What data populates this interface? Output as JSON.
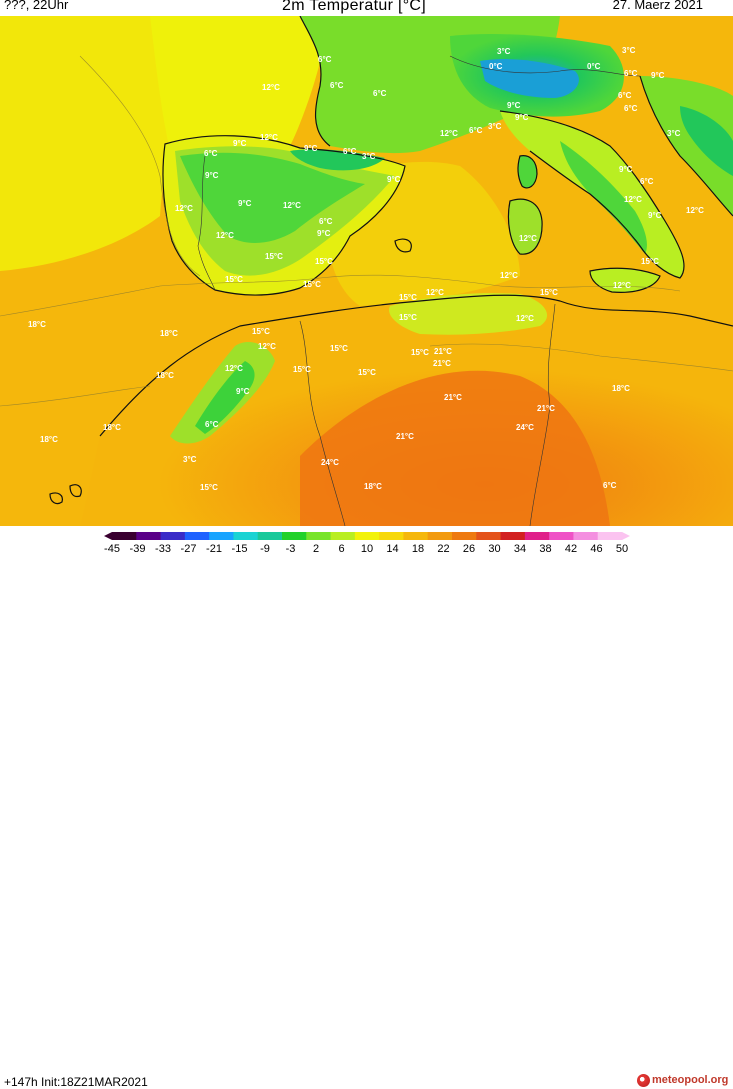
{
  "header": {
    "run_label": "???, 22Uhr",
    "title": "2m Temperatur [°C]",
    "date": "27. Maerz 2021"
  },
  "footer": {
    "init_label": "+147h  Init:18Z21MAR2021",
    "brand": "meteopool.org"
  },
  "colorbar": {
    "ticks": [
      "-45",
      "-39",
      "-33",
      "-27",
      "-21",
      "-15",
      "-9",
      "-3",
      "2",
      "6",
      "10",
      "14",
      "18",
      "22",
      "26",
      "30",
      "34",
      "38",
      "42",
      "46",
      "50"
    ],
    "colors": [
      "#3a0030",
      "#5a0088",
      "#3a2cc8",
      "#1f62ff",
      "#18a4ff",
      "#1ad3d3",
      "#19c99a",
      "#22d12a",
      "#78e42a",
      "#b9ee22",
      "#f2f20a",
      "#f7d80a",
      "#f5b70c",
      "#f29a0f",
      "#ee7a10",
      "#e4531b",
      "#d22121",
      "#e0208a",
      "#ef52c6",
      "#f48fe0",
      "#fbc3f0"
    ]
  },
  "temperature_labels": [
    {
      "text": "12°C"
    },
    {
      "text": "6°C"
    },
    {
      "text": "6°C"
    },
    {
      "text": "6°C"
    },
    {
      "text": "3°C"
    },
    {
      "text": "0°C"
    },
    {
      "text": "3°C"
    },
    {
      "text": "0°C"
    },
    {
      "text": "6°C"
    },
    {
      "text": "9°C"
    },
    {
      "text": "6°C"
    },
    {
      "text": "6°C"
    },
    {
      "text": "9°C"
    },
    {
      "text": "9°C"
    },
    {
      "text": "12°C"
    },
    {
      "text": "6°C"
    },
    {
      "text": "3°C"
    },
    {
      "text": "3°C"
    },
    {
      "text": "12°C"
    },
    {
      "text": "9°C"
    },
    {
      "text": "9°C"
    },
    {
      "text": "6°C"
    },
    {
      "text": "3°C"
    },
    {
      "text": "6°C"
    },
    {
      "text": "9°C"
    },
    {
      "text": "9°C"
    },
    {
      "text": "6°C"
    },
    {
      "text": "9°C"
    },
    {
      "text": "12°C"
    },
    {
      "text": "9°C"
    },
    {
      "text": "12°C"
    },
    {
      "text": "12°C"
    },
    {
      "text": "9°C"
    },
    {
      "text": "12°C"
    },
    {
      "text": "6°C"
    },
    {
      "text": "9°C"
    },
    {
      "text": "12°C"
    },
    {
      "text": "12°C"
    },
    {
      "text": "15°C"
    },
    {
      "text": "15°C"
    },
    {
      "text": "15°C"
    },
    {
      "text": "12°C"
    },
    {
      "text": "15°C"
    },
    {
      "text": "15°C"
    },
    {
      "text": "12°C"
    },
    {
      "text": "15°C"
    },
    {
      "text": "15°C"
    },
    {
      "text": "12°C"
    },
    {
      "text": "15°C"
    },
    {
      "text": "18°C"
    },
    {
      "text": "12°C"
    },
    {
      "text": "15°C"
    },
    {
      "text": "21°C"
    },
    {
      "text": "18°C"
    },
    {
      "text": "12°C"
    },
    {
      "text": "15°C"
    },
    {
      "text": "15°C"
    },
    {
      "text": "12°C"
    },
    {
      "text": "9°C"
    },
    {
      "text": "15°C"
    },
    {
      "text": "21°C"
    },
    {
      "text": "15°C"
    },
    {
      "text": "18°C"
    },
    {
      "text": "6°C"
    },
    {
      "text": "18°C"
    },
    {
      "text": "18°C"
    },
    {
      "text": "21°C"
    },
    {
      "text": "21°C"
    },
    {
      "text": "18°C"
    },
    {
      "text": "21°C"
    },
    {
      "text": "24°C"
    },
    {
      "text": "24°C"
    },
    {
      "text": "15°C"
    },
    {
      "text": "18°C"
    },
    {
      "text": "6°C"
    },
    {
      "text": "3°C"
    }
  ]
}
